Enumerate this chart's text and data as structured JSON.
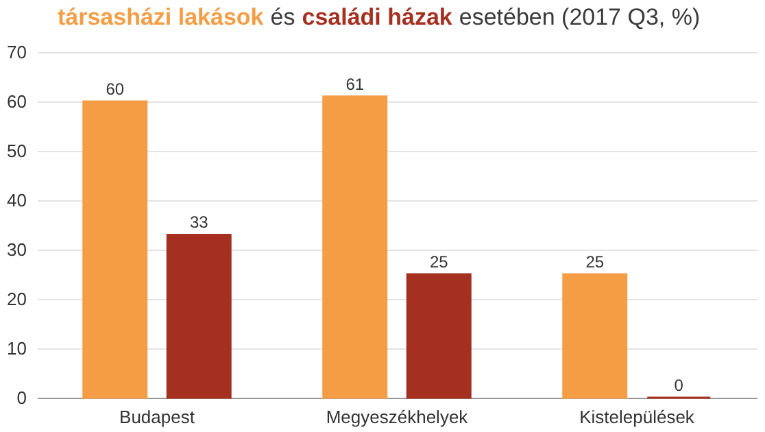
{
  "chart_data": {
    "type": "bar",
    "title": "esetében (2017 Q3, %)",
    "annotations": [
      "és"
    ],
    "categories": [
      "Budapest",
      "Megyeszékhelyek",
      "Kistelepülések"
    ],
    "series": [
      {
        "name": "társasházi lakások",
        "color": "#f59d45",
        "values": [
          60,
          61,
          25
        ]
      },
      {
        "name": "családi házak",
        "color": "#a53020",
        "values": [
          33,
          25,
          0
        ]
      }
    ],
    "ylim": [
      0,
      70
    ],
    "yticks": [
      0,
      10,
      20,
      30,
      40,
      50,
      60,
      70
    ],
    "grid": "y",
    "data_labels": true
  }
}
